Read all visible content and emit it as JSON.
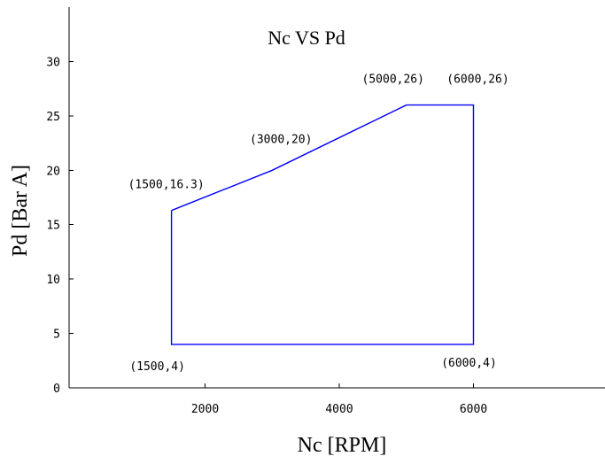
{
  "chart_data": {
    "type": "line",
    "title": "Nc VS Pd",
    "xlabel": "Nc [RPM]",
    "ylabel": "Pd [Bar A]",
    "xlim": [
      0,
      8000
    ],
    "ylim": [
      0,
      35
    ],
    "xticks": [
      2000,
      4000,
      6000
    ],
    "xtick_labels": [
      "2000",
      "4000",
      "6000"
    ],
    "yticks": [
      0,
      5,
      10,
      15,
      20,
      25,
      30
    ],
    "ytick_labels": [
      "0",
      "5",
      "10",
      "15",
      "20",
      "25",
      "30"
    ],
    "grid": false,
    "series": [
      {
        "color": "#0000ff",
        "x": [
          1500,
          1500,
          6000,
          6000,
          5000,
          3000,
          1500
        ],
        "y": [
          16.3,
          4,
          4,
          26,
          26,
          20,
          16.3
        ]
      }
    ],
    "annotations": [
      {
        "text": "(1500,16.3)",
        "x": 1500,
        "y": 16.3
      },
      {
        "text": "(3000,20)",
        "x": 3000,
        "y": 20
      },
      {
        "text": "(5000,26)",
        "x": 5000,
        "y": 26
      },
      {
        "text": "(6000,26)",
        "x": 6000,
        "y": 26
      },
      {
        "text": "(1500,4)",
        "x": 1500,
        "y": 4
      },
      {
        "text": "(6000,4)",
        "x": 6000,
        "y": 4
      }
    ]
  }
}
